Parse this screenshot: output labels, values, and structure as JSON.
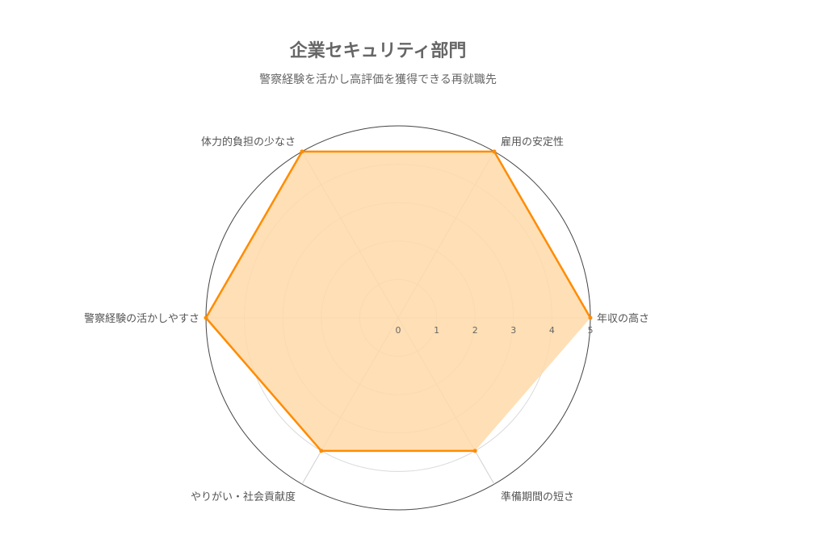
{
  "chart_data": {
    "type": "radar",
    "title": "企業セキュリティ部門",
    "subtitle": "警察経験を活かし高評価を獲得できる再就職先",
    "axes": [
      "年収の高さ",
      "雇用の安定性",
      "体力的負担の少なさ",
      "警察経験の活かしやすさ",
      "やりがい・社会貢献度",
      "準備期間の短さ"
    ],
    "values": [
      5,
      5,
      5,
      5,
      4,
      4
    ],
    "range": [
      0,
      5
    ],
    "ticks": [
      0,
      1,
      2,
      3,
      4,
      5
    ],
    "grid": true,
    "colors": {
      "line": "#ff8c00",
      "fill": "#ffd9a8",
      "grid": "#d9d9d9",
      "outer": "#444444",
      "spoke": "#d0d0d0"
    }
  }
}
